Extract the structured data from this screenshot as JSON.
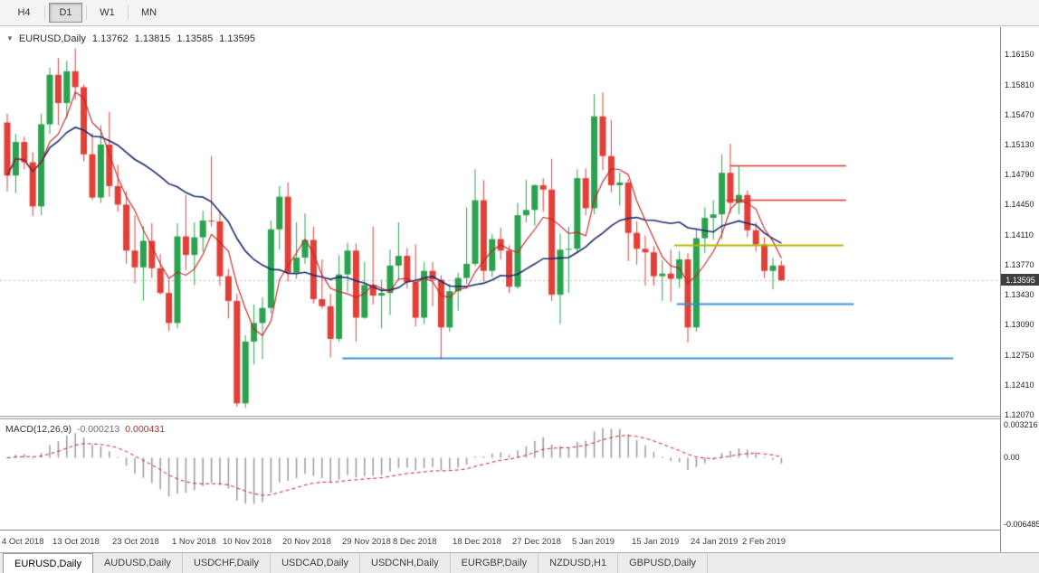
{
  "toolbar": {
    "timeframes": [
      {
        "label": "H4",
        "active": false
      },
      {
        "label": "D1",
        "active": true
      },
      {
        "label": "W1",
        "active": false
      },
      {
        "label": "MN",
        "active": false
      }
    ]
  },
  "chart": {
    "title": {
      "marker": "▼",
      "symbol": "EURUSD,Daily",
      "open": "1.13762",
      "high": "1.13815",
      "low": "1.13585",
      "close": "1.13595"
    }
  },
  "chart_data": {
    "type": "candlestick",
    "symbol": "EURUSD",
    "timeframe": "Daily",
    "grid": false,
    "style": {
      "bull_color": "#2aa24e",
      "bear_color": "#e04038",
      "ma_fast_color": "#cc1f1f",
      "ma_slow_color": "#1b2a70",
      "bid_line_color": "#b8b8b8"
    },
    "overlays": {
      "ma_fast_period": 5,
      "ma_slow_period": 20
    },
    "price_axis": {
      "ylim": [
        1.1206,
        1.1646
      ],
      "labels": [
        "1.16150",
        "1.15810",
        "1.15470",
        "1.15130",
        "1.14790",
        "1.14450",
        "1.14110",
        "1.13770",
        "1.13430",
        "1.13090",
        "1.12750",
        "1.12410",
        "1.12070"
      ],
      "current": "1.13595",
      "current_value": 1.13595
    },
    "x_labels": [
      {
        "index": 0,
        "text": "4 Oct 2018"
      },
      {
        "index": 6,
        "text": "13 Oct 2018"
      },
      {
        "index": 13,
        "text": "23 Oct 2018"
      },
      {
        "index": 20,
        "text": "1 Nov 2018"
      },
      {
        "index": 26,
        "text": "10 Nov 2018"
      },
      {
        "index": 33,
        "text": "20 Nov 2018"
      },
      {
        "index": 40,
        "text": "29 Nov 2018"
      },
      {
        "index": 46,
        "text": "8 Dec 2018"
      },
      {
        "index": 53,
        "text": "18 Dec 2018"
      },
      {
        "index": 60,
        "text": "27 Dec 2018"
      },
      {
        "index": 67,
        "text": "5 Jan 2019"
      },
      {
        "index": 74,
        "text": "15 Jan 2019"
      },
      {
        "index": 81,
        "text": "24 Jan 2019"
      },
      {
        "index": 87,
        "text": "2 Feb 2019"
      }
    ],
    "candles": [
      [
        1.1538,
        1.1548,
        1.146,
        1.1478
      ],
      [
        1.1478,
        1.1525,
        1.1458,
        1.1516
      ],
      [
        1.1516,
        1.1522,
        1.1485,
        1.1493
      ],
      [
        1.1493,
        1.1504,
        1.1432,
        1.1443
      ],
      [
        1.1443,
        1.1548,
        1.1433,
        1.1536
      ],
      [
        1.1536,
        1.16,
        1.1525,
        1.1592
      ],
      [
        1.1592,
        1.1611,
        1.1535,
        1.156
      ],
      [
        1.156,
        1.1608,
        1.1543,
        1.1596
      ],
      [
        1.1596,
        1.1622,
        1.1564,
        1.1578
      ],
      [
        1.1578,
        1.1581,
        1.1494,
        1.1502
      ],
      [
        1.1502,
        1.1526,
        1.145,
        1.1453
      ],
      [
        1.1453,
        1.1535,
        1.1447,
        1.1513
      ],
      [
        1.1513,
        1.155,
        1.1454,
        1.1466
      ],
      [
        1.1466,
        1.149,
        1.1437,
        1.1445
      ],
      [
        1.1445,
        1.146,
        1.1378,
        1.1393
      ],
      [
        1.1393,
        1.1433,
        1.1356,
        1.1374
      ],
      [
        1.1374,
        1.1421,
        1.1336,
        1.1404
      ],
      [
        1.1404,
        1.1424,
        1.1362,
        1.1373
      ],
      [
        1.1373,
        1.1389,
        1.1343,
        1.1345
      ],
      [
        1.1345,
        1.136,
        1.1302,
        1.1311
      ],
      [
        1.1311,
        1.1424,
        1.1305,
        1.1409
      ],
      [
        1.1409,
        1.1456,
        1.1371,
        1.1388
      ],
      [
        1.1388,
        1.1425,
        1.1354,
        1.1408
      ],
      [
        1.1408,
        1.1438,
        1.1392,
        1.1427
      ],
      [
        1.1427,
        1.15,
        1.142,
        1.1426
      ],
      [
        1.1426,
        1.1437,
        1.1353,
        1.1364
      ],
      [
        1.1364,
        1.1372,
        1.1316,
        1.1336
      ],
      [
        1.1336,
        1.1344,
        1.1216,
        1.122
      ],
      [
        1.122,
        1.1297,
        1.1215,
        1.129
      ],
      [
        1.129,
        1.1332,
        1.1264,
        1.1311
      ],
      [
        1.1311,
        1.134,
        1.127,
        1.1328
      ],
      [
        1.1328,
        1.1427,
        1.1322,
        1.1417
      ],
      [
        1.1417,
        1.1466,
        1.1394,
        1.1454
      ],
      [
        1.1454,
        1.147,
        1.1358,
        1.1368
      ],
      [
        1.1368,
        1.1425,
        1.1361,
        1.1385
      ],
      [
        1.1385,
        1.1435,
        1.1378,
        1.1405
      ],
      [
        1.1405,
        1.142,
        1.1333,
        1.1338
      ],
      [
        1.1338,
        1.1383,
        1.1327,
        1.133
      ],
      [
        1.133,
        1.1344,
        1.1272,
        1.1293
      ],
      [
        1.1293,
        1.1388,
        1.129,
        1.1366
      ],
      [
        1.1366,
        1.1402,
        1.1346,
        1.1393
      ],
      [
        1.1393,
        1.1401,
        1.129,
        1.1317
      ],
      [
        1.1317,
        1.138,
        1.1316,
        1.1354
      ],
      [
        1.1354,
        1.142,
        1.1332,
        1.1342
      ],
      [
        1.1342,
        1.136,
        1.1305,
        1.1345
      ],
      [
        1.1345,
        1.1394,
        1.132,
        1.1376
      ],
      [
        1.1376,
        1.1425,
        1.136,
        1.1387
      ],
      [
        1.1387,
        1.1396,
        1.135,
        1.1357
      ],
      [
        1.1357,
        1.14,
        1.1307,
        1.1317
      ],
      [
        1.1317,
        1.138,
        1.131,
        1.137
      ],
      [
        1.137,
        1.138,
        1.133,
        1.136
      ],
      [
        1.136,
        1.1365,
        1.127,
        1.1306
      ],
      [
        1.1306,
        1.1355,
        1.1301,
        1.1347
      ],
      [
        1.1347,
        1.1368,
        1.1325,
        1.1362
      ],
      [
        1.1362,
        1.1442,
        1.1355,
        1.1378
      ],
      [
        1.1378,
        1.1485,
        1.1375,
        1.145
      ],
      [
        1.145,
        1.1473,
        1.1358,
        1.137
      ],
      [
        1.137,
        1.1412,
        1.1363,
        1.1406
      ],
      [
        1.1406,
        1.1419,
        1.1383,
        1.1393
      ],
      [
        1.1393,
        1.1399,
        1.1345,
        1.1352
      ],
      [
        1.1352,
        1.1447,
        1.135,
        1.1433
      ],
      [
        1.1433,
        1.1473,
        1.1425,
        1.1439
      ],
      [
        1.1439,
        1.1468,
        1.1421,
        1.1467
      ],
      [
        1.1467,
        1.1475,
        1.1437,
        1.1462
      ],
      [
        1.1462,
        1.1497,
        1.1336,
        1.1343
      ],
      [
        1.1343,
        1.1412,
        1.131,
        1.1394
      ],
      [
        1.1394,
        1.142,
        1.1345,
        1.1395
      ],
      [
        1.1395,
        1.1485,
        1.139,
        1.1475
      ],
      [
        1.1475,
        1.1486,
        1.1433,
        1.1441
      ],
      [
        1.1441,
        1.157,
        1.1434,
        1.1545
      ],
      [
        1.1545,
        1.1572,
        1.1484,
        1.15
      ],
      [
        1.15,
        1.1541,
        1.1459,
        1.1467
      ],
      [
        1.1467,
        1.1482,
        1.1444,
        1.147
      ],
      [
        1.147,
        1.1474,
        1.1381,
        1.1413
      ],
      [
        1.1413,
        1.1426,
        1.1377,
        1.1395
      ],
      [
        1.1395,
        1.141,
        1.1353,
        1.1391
      ],
      [
        1.1391,
        1.1398,
        1.1353,
        1.1364
      ],
      [
        1.1364,
        1.1382,
        1.1336,
        1.1367
      ],
      [
        1.1367,
        1.1394,
        1.1335,
        1.1361
      ],
      [
        1.1361,
        1.1392,
        1.1351,
        1.1383
      ],
      [
        1.1383,
        1.139,
        1.1289,
        1.1306
      ],
      [
        1.1306,
        1.1418,
        1.1301,
        1.1407
      ],
      [
        1.1407,
        1.1442,
        1.139,
        1.143
      ],
      [
        1.143,
        1.145,
        1.1405,
        1.1434
      ],
      [
        1.1434,
        1.1502,
        1.1406,
        1.1481
      ],
      [
        1.1481,
        1.1514,
        1.1435,
        1.1447
      ],
      [
        1.1447,
        1.1489,
        1.1434,
        1.1456
      ],
      [
        1.1456,
        1.1461,
        1.1408,
        1.1416
      ],
      [
        1.1416,
        1.1425,
        1.1392,
        1.14
      ],
      [
        1.14,
        1.1408,
        1.1362,
        1.137
      ],
      [
        1.137,
        1.1385,
        1.1349,
        1.1376
      ],
      [
        1.13762,
        1.13815,
        1.13585,
        1.13595
      ]
    ],
    "trendlines": [
      {
        "price": 1.1489,
        "x1": 85.0,
        "x2": 98.6,
        "color": "#e03232",
        "width": 1.6
      },
      {
        "price": 1.1451,
        "x1": 84.5,
        "x2": 98.6,
        "color": "#e03232",
        "width": 1.6
      },
      {
        "price": 1.1399,
        "x1": 78.4,
        "x2": 98.3,
        "color": "#b5b800",
        "width": 2
      },
      {
        "price": 1.1333,
        "x1": 78.7,
        "x2": 99.5,
        "color": "#3d8fd8",
        "width": 2
      },
      {
        "price": 1.1272,
        "x1": 39.4,
        "x2": 111.2,
        "color": "#3d8fd8",
        "width": 2
      }
    ],
    "macd": {
      "label": "MACD(12,26,9)",
      "value": "-0.000213",
      "signal_value": "0.000431",
      "params": [
        12,
        26,
        9
      ],
      "scale_max": 0.003216,
      "scale_min": -0.006485,
      "axis_labels": [
        "0.003216",
        "0.00",
        "-0.006485"
      ],
      "hist_color": "#9a9a9a",
      "signal_color": "#cc2222"
    }
  },
  "tabs": {
    "items": [
      {
        "label": "EURUSD,Daily",
        "active": true
      },
      {
        "label": "AUDUSD,Daily",
        "active": false
      },
      {
        "label": "USDCHF,Daily",
        "active": false
      },
      {
        "label": "USDCAD,Daily",
        "active": false
      },
      {
        "label": "USDCNH,Daily",
        "active": false
      },
      {
        "label": "EURGBP,Daily",
        "active": false
      },
      {
        "label": "NZDUSD,H1",
        "active": false
      },
      {
        "label": "GBPUSD,Daily",
        "active": false
      }
    ]
  }
}
